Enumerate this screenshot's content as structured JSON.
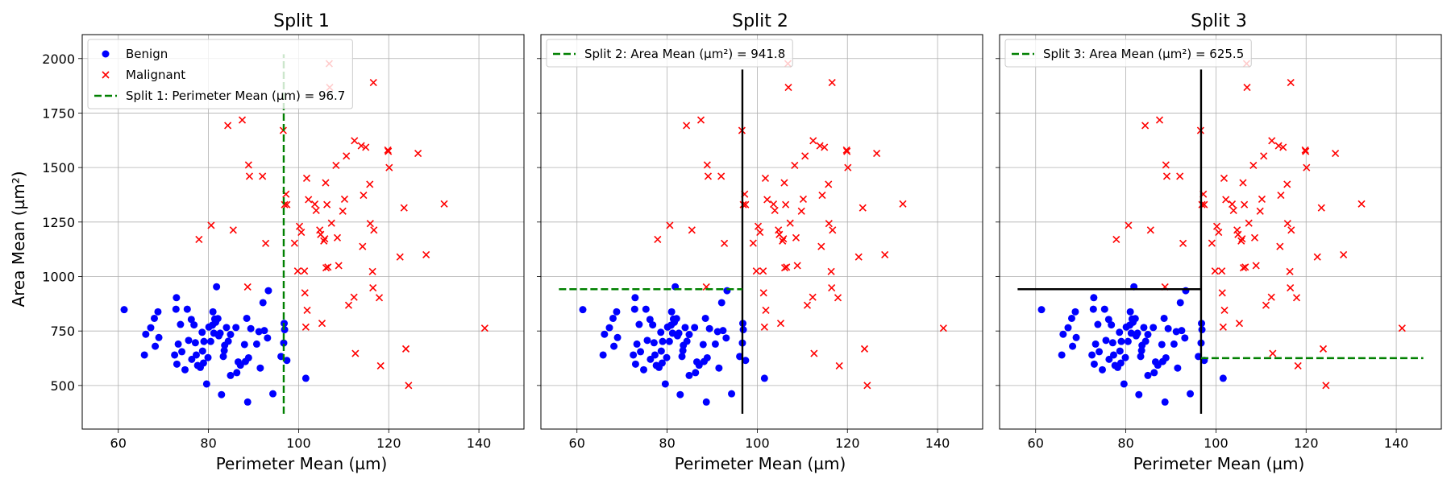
{
  "chart_data": [
    {
      "type": "scatter",
      "title": "Split 1",
      "xlabel": "Perimeter Mean (µm)",
      "ylabel": "Area Mean (µm²)",
      "xlim": [
        52,
        150
      ],
      "ylim": [
        300,
        2110
      ],
      "xticks": [
        60,
        80,
        100,
        120,
        140
      ],
      "yticks": [
        500,
        750,
        1000,
        1250,
        1500,
        1750,
        2000
      ],
      "grid": true,
      "legend_position": "top-left",
      "legend": [
        "Benign",
        "Malignant",
        "Split 1: Perimeter Mean (µm) = 96.7"
      ],
      "show_ylabel": true,
      "show_ytick_labels": true,
      "split_lines": [
        {
          "name": "Split 1: Perimeter Mean (µm) = 96.7",
          "orientation": "vertical",
          "x": 96.7,
          "y_range": [
            370,
            2020
          ],
          "style": "dashed",
          "color": "#008000"
        }
      ]
    },
    {
      "type": "scatter",
      "title": "Split 2",
      "xlabel": "Perimeter Mean (µm)",
      "ylabel": "",
      "xlim": [
        52,
        150
      ],
      "ylim": [
        300,
        2110
      ],
      "xticks": [
        60,
        80,
        100,
        120,
        140
      ],
      "yticks": [
        500,
        750,
        1000,
        1250,
        1500,
        1750,
        2000
      ],
      "grid": true,
      "legend_position": "top-left",
      "legend": [
        "Split 2: Area Mean (µm²) = 941.8"
      ],
      "show_ylabel": false,
      "show_ytick_labels": false,
      "split_lines": [
        {
          "orientation": "vertical",
          "x": 96.7,
          "y_range": [
            370,
            1950
          ],
          "style": "solid",
          "color": "#000000"
        },
        {
          "name": "Split 2: Area Mean (µm²) = 941.8",
          "orientation": "horizontal",
          "y": 941.8,
          "x_range": [
            56,
            96.7
          ],
          "style": "dashed",
          "color": "#008000"
        }
      ]
    },
    {
      "type": "scatter",
      "title": "Split 3",
      "xlabel": "Perimeter Mean (µm)",
      "ylabel": "",
      "xlim": [
        52,
        150
      ],
      "ylim": [
        300,
        2110
      ],
      "xticks": [
        60,
        80,
        100,
        120,
        140
      ],
      "yticks": [
        500,
        750,
        1000,
        1250,
        1500,
        1750,
        2000
      ],
      "grid": true,
      "legend_position": "top-left",
      "legend": [
        "Split 3: Area Mean (µm²) = 625.5"
      ],
      "show_ylabel": false,
      "show_ytick_labels": false,
      "split_lines": [
        {
          "orientation": "vertical",
          "x": 96.7,
          "y_range": [
            370,
            1950
          ],
          "style": "solid",
          "color": "#000000"
        },
        {
          "orientation": "horizontal",
          "y": 941.8,
          "x_range": [
            56,
            96.7
          ],
          "style": "solid",
          "color": "#000000"
        },
        {
          "name": "Split 3: Area Mean (µm²) = 625.5",
          "orientation": "horizontal",
          "y": 625.5,
          "x_range": [
            96.7,
            146
          ],
          "style": "dashed",
          "color": "#008000"
        }
      ]
    }
  ],
  "series": [
    {
      "name": "Benign",
      "marker": "circle",
      "color": "#0000ff",
      "points": [
        [
          61.3,
          848
        ],
        [
          65.8,
          640
        ],
        [
          66.1,
          735
        ],
        [
          67.2,
          765
        ],
        [
          68.0,
          808
        ],
        [
          68.2,
          680
        ],
        [
          68.8,
          838
        ],
        [
          69.0,
          720
        ],
        [
          72.5,
          640
        ],
        [
          72.8,
          850
        ],
        [
          72.9,
          903
        ],
        [
          73.0,
          598
        ],
        [
          73.3,
          690
        ],
        [
          73.8,
          780
        ],
        [
          74.1,
          655
        ],
        [
          74.8,
          572
        ],
        [
          75.3,
          850
        ],
        [
          75.6,
          707
        ],
        [
          76.2,
          803
        ],
        [
          76.3,
          620
        ],
        [
          76.8,
          778
        ],
        [
          77.1,
          696
        ],
        [
          77.3,
          640
        ],
        [
          77.6,
          592
        ],
        [
          78.2,
          583
        ],
        [
          78.6,
          744
        ],
        [
          78.7,
          658
        ],
        [
          78.9,
          603
        ],
        [
          79.0,
          702
        ],
        [
          79.6,
          507
        ],
        [
          79.9,
          628
        ],
        [
          80.1,
          768
        ],
        [
          80.5,
          702
        ],
        [
          80.9,
          777
        ],
        [
          81.0,
          838
        ],
        [
          81.2,
          740
        ],
        [
          81.4,
          805
        ],
        [
          81.6,
          790
        ],
        [
          81.8,
          953
        ],
        [
          82.1,
          807
        ],
        [
          82.3,
          728
        ],
        [
          82.6,
          740
        ],
        [
          82.9,
          458
        ],
        [
          83.3,
          633
        ],
        [
          83.5,
          660
        ],
        [
          83.6,
          684
        ],
        [
          84.0,
          766
        ],
        [
          84.4,
          703
        ],
        [
          84.9,
          546
        ],
        [
          84.9,
          734
        ],
        [
          86.1,
          766
        ],
        [
          86.3,
          559
        ],
        [
          86.6,
          608
        ],
        [
          87.1,
          593
        ],
        [
          88.0,
          688
        ],
        [
          88.2,
          610
        ],
        [
          88.5,
          808
        ],
        [
          88.7,
          424
        ],
        [
          88.9,
          627
        ],
        [
          89.4,
          761
        ],
        [
          90.7,
          690
        ],
        [
          91.2,
          747
        ],
        [
          91.5,
          580
        ],
        [
          92.1,
          880
        ],
        [
          92.4,
          752
        ],
        [
          93.1,
          718
        ],
        [
          93.3,
          935
        ],
        [
          94.3,
          462
        ],
        [
          96.1,
          633
        ],
        [
          96.7,
          695
        ],
        [
          96.8,
          785
        ],
        [
          96.9,
          756
        ],
        [
          97.4,
          615
        ],
        [
          101.6,
          533
        ]
      ]
    },
    {
      "name": "Malignant",
      "marker": "x",
      "color": "#ff0000",
      "points": [
        [
          77.9,
          1170
        ],
        [
          80.6,
          1235
        ],
        [
          84.3,
          1693
        ],
        [
          85.5,
          1213
        ],
        [
          87.5,
          1718
        ],
        [
          88.9,
          1512
        ],
        [
          88.7,
          952
        ],
        [
          89.1,
          1460
        ],
        [
          92.0,
          1460
        ],
        [
          92.7,
          1152
        ],
        [
          96.6,
          1670
        ],
        [
          96.9,
          1330
        ],
        [
          97.2,
          1378
        ],
        [
          97.4,
          1330
        ],
        [
          99.1,
          1153
        ],
        [
          99.8,
          1025
        ],
        [
          100.2,
          1230
        ],
        [
          100.6,
          1203
        ],
        [
          101.3,
          1025
        ],
        [
          101.4,
          925
        ],
        [
          101.6,
          768
        ],
        [
          101.8,
          1451
        ],
        [
          101.9,
          845
        ],
        [
          102.2,
          1353
        ],
        [
          103.6,
          1332
        ],
        [
          103.9,
          1303
        ],
        [
          104.7,
          1213
        ],
        [
          104.9,
          1193
        ],
        [
          105.2,
          785
        ],
        [
          105.6,
          1163
        ],
        [
          105.8,
          1173
        ],
        [
          106.0,
          1430
        ],
        [
          106.1,
          1040
        ],
        [
          106.3,
          1330
        ],
        [
          106.5,
          1043
        ],
        [
          106.8,
          1977
        ],
        [
          106.9,
          1868
        ],
        [
          107.3,
          1245
        ],
        [
          108.3,
          1510
        ],
        [
          108.6,
          1178
        ],
        [
          108.9,
          1050
        ],
        [
          109.8,
          1300
        ],
        [
          110.2,
          1355
        ],
        [
          110.6,
          1553
        ],
        [
          111.1,
          868
        ],
        [
          112.3,
          905
        ],
        [
          112.4,
          1623
        ],
        [
          112.6,
          647
        ],
        [
          113.9,
          1600
        ],
        [
          114.2,
          1138
        ],
        [
          114.4,
          1373
        ],
        [
          114.9,
          1593
        ],
        [
          115.8,
          1423
        ],
        [
          115.9,
          1243
        ],
        [
          116.4,
          1023
        ],
        [
          116.5,
          948
        ],
        [
          116.6,
          1890
        ],
        [
          116.7,
          1213
        ],
        [
          117.9,
          903
        ],
        [
          118.2,
          590
        ],
        [
          119.8,
          1580
        ],
        [
          119.9,
          1574
        ],
        [
          120.1,
          1500
        ],
        [
          122.5,
          1090
        ],
        [
          123.4,
          1315
        ],
        [
          123.8,
          668
        ],
        [
          124.4,
          500
        ],
        [
          126.5,
          1565
        ],
        [
          128.3,
          1100
        ],
        [
          132.3,
          1333
        ],
        [
          141.3,
          763
        ]
      ]
    }
  ]
}
